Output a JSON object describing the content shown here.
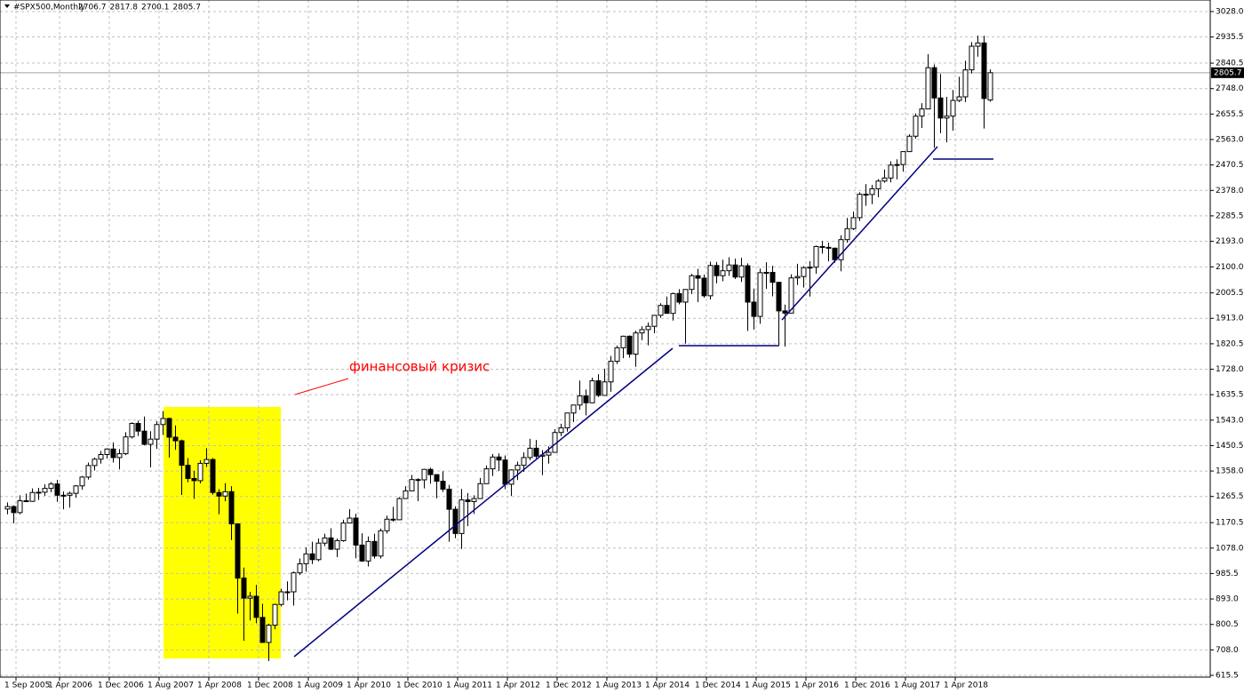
{
  "chart_data": {
    "type": "candlestick",
    "title": "#SPX500,Monthly",
    "annotations": [
      "финансовый кризис"
    ],
    "colors": {
      "up": "#ffffff",
      "down": "#000000",
      "outline": "#000000"
    },
    "grid": true,
    "ylim": [
      609,
      3070
    ],
    "yticks": [
      615.5,
      {
        "value": 708,
        "label": "708.0"
      },
      800.5,
      {
        "value": 893,
        "label": "893.0"
      },
      985.5,
      {
        "value": 1078,
        "label": "1078.0"
      },
      1170.5,
      1265.5,
      {
        "value": 1358,
        "label": "1358.0"
      },
      1450.5,
      {
        "value": 1543,
        "label": "1543.0"
      },
      1635.5,
      {
        "value": 1728,
        "label": "1728.0"
      },
      1820.5,
      {
        "value": 1913,
        "label": "1913.0"
      },
      2005.5,
      {
        "value": 2100,
        "label": "2100.0"
      },
      {
        "value": 2193,
        "label": "2193.0"
      },
      2285.5,
      {
        "value": 2378,
        "label": "2378.0"
      },
      2470.5,
      {
        "value": 2563,
        "label": "2563.0"
      },
      2655.5,
      {
        "value": 2748,
        "label": "2748.0"
      },
      2840.5,
      2935.5,
      {
        "value": 3028,
        "label": "3028.0"
      }
    ],
    "categories": [
      "1 Sep 2005",
      null,
      null,
      null,
      null,
      null,
      null,
      "1 Apr 2006",
      null,
      null,
      null,
      null,
      null,
      null,
      null,
      "1 Dec 2006",
      null,
      null,
      null,
      null,
      null,
      null,
      null,
      "1 Aug 2007",
      null,
      null,
      null,
      null,
      null,
      null,
      null,
      "1 Apr 2008",
      null,
      null,
      null,
      null,
      null,
      null,
      null,
      "1 Dec 2008",
      null,
      null,
      null,
      null,
      null,
      null,
      null,
      "1 Aug 2009",
      null,
      null,
      null,
      null,
      null,
      null,
      null,
      "1 Apr 2010",
      null,
      null,
      null,
      null,
      null,
      null,
      null,
      "1 Dec 2010",
      null,
      null,
      null,
      null,
      null,
      null,
      null,
      "1 Aug 2011",
      null,
      null,
      null,
      null,
      null,
      null,
      null,
      "1 Apr 2012",
      null,
      null,
      null,
      null,
      null,
      null,
      null,
      "1 Dec 2012",
      null,
      null,
      null,
      null,
      null,
      null,
      null,
      "1 Aug 2013",
      null,
      null,
      null,
      null,
      null,
      null,
      null,
      "1 Apr 2014",
      null,
      null,
      null,
      null,
      null,
      null,
      null,
      "1 Dec 2014",
      null,
      null,
      null,
      null,
      null,
      null,
      null,
      "1 Aug 2015",
      null,
      null,
      null,
      null,
      null,
      null,
      null,
      "1 Apr 2016",
      null,
      null,
      null,
      null,
      null,
      null,
      null,
      "1 Dec 2016",
      null,
      null,
      null,
      null,
      null,
      null,
      null,
      "1 Aug 2017",
      null,
      null,
      null,
      null,
      null,
      null,
      null,
      "1 Apr 2018",
      null,
      null,
      null,
      null,
      null,
      null,
      null
    ],
    "ohlc": [
      [
        1220,
        1244,
        1201,
        1229
      ],
      [
        1229,
        1233,
        1168,
        1207
      ],
      [
        1207,
        1270,
        1201,
        1250
      ],
      [
        1250,
        1276,
        1246,
        1248
      ],
      [
        1248,
        1295,
        1246,
        1280
      ],
      [
        1280,
        1297,
        1253,
        1281
      ],
      [
        1281,
        1310,
        1268,
        1295
      ],
      [
        1295,
        1318,
        1281,
        1311
      ],
      [
        1311,
        1326,
        1246,
        1270
      ],
      [
        1270,
        1284,
        1219,
        1270
      ],
      [
        1270,
        1283,
        1225,
        1277
      ],
      [
        1277,
        1307,
        1261,
        1304
      ],
      [
        1304,
        1340,
        1290,
        1336
      ],
      [
        1336,
        1389,
        1327,
        1378
      ],
      [
        1378,
        1407,
        1360,
        1401
      ],
      [
        1401,
        1431,
        1385,
        1418
      ],
      [
        1418,
        1441,
        1403,
        1438
      ],
      [
        1438,
        1462,
        1389,
        1407
      ],
      [
        1407,
        1438,
        1364,
        1421
      ],
      [
        1421,
        1499,
        1416,
        1482
      ],
      [
        1482,
        1535,
        1476,
        1531
      ],
      [
        1531,
        1541,
        1485,
        1503
      ],
      [
        1503,
        1556,
        1452,
        1455
      ],
      [
        1455,
        1503,
        1371,
        1474
      ],
      [
        1474,
        1539,
        1439,
        1527
      ],
      [
        1527,
        1576,
        1489,
        1549
      ],
      [
        1549,
        1552,
        1407,
        1481
      ],
      [
        1481,
        1524,
        1435,
        1468
      ],
      [
        1468,
        1472,
        1271,
        1379
      ],
      [
        1379,
        1405,
        1317,
        1331
      ],
      [
        1331,
        1359,
        1257,
        1323
      ],
      [
        1323,
        1397,
        1313,
        1386
      ],
      [
        1386,
        1441,
        1373,
        1400
      ],
      [
        1400,
        1405,
        1272,
        1280
      ],
      [
        1280,
        1292,
        1201,
        1267
      ],
      [
        1267,
        1314,
        1248,
        1283
      ],
      [
        1283,
        1303,
        1107,
        1166
      ],
      [
        1166,
        1168,
        840,
        969
      ],
      [
        969,
        1007,
        741,
        896
      ],
      [
        896,
        919,
        815,
        903
      ],
      [
        903,
        944,
        805,
        826
      ],
      [
        826,
        876,
        735,
        735
      ],
      [
        735,
        803,
        667,
        798
      ],
      [
        798,
        876,
        783,
        873
      ],
      [
        873,
        930,
        866,
        919
      ],
      [
        919,
        957,
        888,
        919
      ],
      [
        919,
        993,
        869,
        988
      ],
      [
        988,
        1040,
        980,
        1021
      ],
      [
        1021,
        1081,
        992,
        1057
      ],
      [
        1057,
        1101,
        1020,
        1036
      ],
      [
        1036,
        1113,
        1030,
        1096
      ],
      [
        1096,
        1130,
        1085,
        1115
      ],
      [
        1115,
        1150,
        1071,
        1074
      ],
      [
        1074,
        1113,
        1045,
        1105
      ],
      [
        1105,
        1181,
        1101,
        1169
      ],
      [
        1169,
        1220,
        1170,
        1187
      ],
      [
        1187,
        1203,
        1041,
        1089
      ],
      [
        1089,
        1132,
        1028,
        1031
      ],
      [
        1031,
        1120,
        1011,
        1102
      ],
      [
        1102,
        1130,
        1040,
        1049
      ],
      [
        1049,
        1149,
        1040,
        1141
      ],
      [
        1141,
        1196,
        1131,
        1183
      ],
      [
        1183,
        1228,
        1174,
        1181
      ],
      [
        1181,
        1263,
        1181,
        1258
      ],
      [
        1258,
        1303,
        1257,
        1286
      ],
      [
        1286,
        1344,
        1285,
        1327
      ],
      [
        1327,
        1332,
        1249,
        1326
      ],
      [
        1326,
        1366,
        1295,
        1364
      ],
      [
        1364,
        1370,
        1312,
        1345
      ],
      [
        1345,
        1346,
        1259,
        1321
      ],
      [
        1321,
        1357,
        1282,
        1292
      ],
      [
        1292,
        1308,
        1101,
        1219
      ],
      [
        1219,
        1230,
        1114,
        1131
      ],
      [
        1131,
        1293,
        1075,
        1253
      ],
      [
        1253,
        1278,
        1158,
        1247
      ],
      [
        1247,
        1270,
        1202,
        1258
      ],
      [
        1258,
        1333,
        1258,
        1312
      ],
      [
        1312,
        1378,
        1312,
        1366
      ],
      [
        1366,
        1420,
        1340,
        1409
      ],
      [
        1409,
        1422,
        1358,
        1398
      ],
      [
        1398,
        1415,
        1292,
        1310
      ],
      [
        1310,
        1364,
        1267,
        1362
      ],
      [
        1362,
        1392,
        1325,
        1379
      ],
      [
        1379,
        1426,
        1355,
        1407
      ],
      [
        1407,
        1475,
        1397,
        1441
      ],
      [
        1441,
        1471,
        1404,
        1412
      ],
      [
        1412,
        1434,
        1343,
        1416
      ],
      [
        1416,
        1448,
        1385,
        1426
      ],
      [
        1426,
        1510,
        1426,
        1498
      ],
      [
        1498,
        1530,
        1485,
        1515
      ],
      [
        1515,
        1570,
        1501,
        1569
      ],
      [
        1569,
        1598,
        1536,
        1598
      ],
      [
        1598,
        1687,
        1581,
        1631
      ],
      [
        1631,
        1654,
        1560,
        1606
      ],
      [
        1606,
        1698,
        1605,
        1686
      ],
      [
        1686,
        1710,
        1627,
        1633
      ],
      [
        1633,
        1730,
        1633,
        1682
      ],
      [
        1682,
        1776,
        1646,
        1757
      ],
      [
        1757,
        1814,
        1747,
        1806
      ],
      [
        1806,
        1850,
        1768,
        1848
      ],
      [
        1848,
        1851,
        1770,
        1783
      ],
      [
        1783,
        1868,
        1737,
        1860
      ],
      [
        1860,
        1884,
        1834,
        1872
      ],
      [
        1872,
        1898,
        1815,
        1884
      ],
      [
        1884,
        1925,
        1859,
        1924
      ],
      [
        1924,
        1968,
        1915,
        1960
      ],
      [
        1960,
        1992,
        1931,
        1931
      ],
      [
        1931,
        2006,
        1905,
        2003
      ],
      [
        2003,
        2019,
        1964,
        1972
      ],
      [
        1972,
        2018,
        1821,
        2018
      ],
      [
        2018,
        2075,
        2001,
        2068
      ],
      [
        2068,
        2093,
        1972,
        2059
      ],
      [
        2059,
        2072,
        1988,
        1995
      ],
      [
        1995,
        2119,
        1981,
        2105
      ],
      [
        2105,
        2118,
        2040,
        2068
      ],
      [
        2068,
        2126,
        2048,
        2086
      ],
      [
        2086,
        2135,
        2067,
        2107
      ],
      [
        2107,
        2130,
        2056,
        2063
      ],
      [
        2063,
        2133,
        2045,
        2104
      ],
      [
        2104,
        2113,
        1867,
        1972
      ],
      [
        1972,
        2021,
        1872,
        1920
      ],
      [
        1920,
        2094,
        1893,
        2079
      ],
      [
        2079,
        2117,
        2020,
        2080
      ],
      [
        2080,
        2104,
        1993,
        2044
      ],
      [
        2044,
        2044,
        1812,
        1940
      ],
      [
        1940,
        1963,
        1810,
        1932
      ],
      [
        1932,
        2073,
        1932,
        2060
      ],
      [
        2060,
        2111,
        2034,
        2065
      ],
      [
        2065,
        2103,
        2025,
        2097
      ],
      [
        2097,
        2121,
        1992,
        2099
      ],
      [
        2099,
        2178,
        2075,
        2174
      ],
      [
        2174,
        2194,
        2148,
        2171
      ],
      [
        2171,
        2188,
        2120,
        2168
      ],
      [
        2168,
        2170,
        2115,
        2126
      ],
      [
        2126,
        2215,
        2084,
        2199
      ],
      [
        2199,
        2278,
        2188,
        2239
      ],
      [
        2239,
        2301,
        2234,
        2279
      ],
      [
        2279,
        2371,
        2267,
        2364
      ],
      [
        2364,
        2401,
        2322,
        2363
      ],
      [
        2363,
        2398,
        2328,
        2384
      ],
      [
        2384,
        2419,
        2353,
        2412
      ],
      [
        2412,
        2454,
        2406,
        2423
      ],
      [
        2423,
        2484,
        2407,
        2470
      ],
      [
        2470,
        2491,
        2418,
        2472
      ],
      [
        2472,
        2520,
        2446,
        2519
      ],
      [
        2519,
        2582,
        2520,
        2575
      ],
      [
        2575,
        2658,
        2566,
        2648
      ],
      [
        2648,
        2695,
        2605,
        2674
      ],
      [
        2674,
        2873,
        2674,
        2824
      ],
      [
        2824,
        2836,
        2533,
        2714
      ],
      [
        2714,
        2801,
        2586,
        2641
      ],
      [
        2641,
        2718,
        2553,
        2648
      ],
      [
        2648,
        2743,
        2595,
        2705
      ],
      [
        2705,
        2791,
        2699,
        2718
      ],
      [
        2718,
        2849,
        2699,
        2816
      ],
      [
        2816,
        2917,
        2803,
        2902
      ],
      [
        2902,
        2941,
        2864,
        2914
      ],
      [
        2914,
        2940,
        2603,
        2712
      ],
      [
        2706.7,
        2817.8,
        2700.1,
        2805.7
      ]
    ]
  }
}
